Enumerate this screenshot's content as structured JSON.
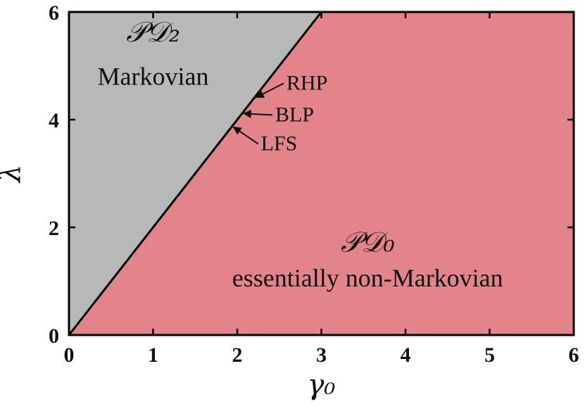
{
  "chart_data": {
    "type": "area",
    "xlabel": "γ₀",
    "ylabel": "λ",
    "xlim": [
      0,
      6
    ],
    "ylim": [
      0,
      6
    ],
    "x_ticks": [
      "0",
      "1",
      "2",
      "3",
      "4",
      "5",
      "6"
    ],
    "y_ticks": [
      "0",
      "2",
      "4",
      "6"
    ],
    "boundary_line": {
      "x": [
        0,
        3
      ],
      "y": [
        0,
        6
      ]
    },
    "regions": [
      {
        "title": "𝒫𝒟₂",
        "description": "Markovian",
        "color": "#b8b8b8",
        "polygon": [
          [
            0,
            0
          ],
          [
            3,
            6
          ],
          [
            0,
            6
          ]
        ]
      },
      {
        "title": "𝒫𝒟₀",
        "description": "essentially non-Markovian",
        "color": "#e3848a",
        "polygon": [
          [
            0,
            0
          ],
          [
            6,
            0
          ],
          [
            6,
            6
          ],
          [
            3,
            6
          ]
        ]
      }
    ],
    "annotations": [
      {
        "text": "RHP",
        "point": [
          2.2,
          4.4
        ]
      },
      {
        "text": "BLP",
        "point": [
          2.05,
          4.1
        ]
      },
      {
        "text": "LFS",
        "point": [
          1.93,
          3.85
        ]
      }
    ],
    "grid": false
  }
}
